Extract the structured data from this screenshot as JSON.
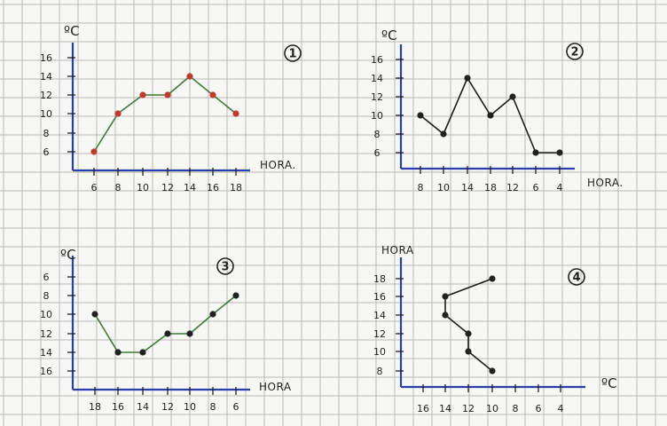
{
  "colors": {
    "paper": "#f7f7f3",
    "grid": "#b8b8b4",
    "axis": "#2a3fa8",
    "ink": "#222222",
    "line_green": "#3f7a3c",
    "line_black": "#1c1c1c",
    "point_red": "#c03a30",
    "point_dark": "#222222"
  },
  "chart_data": [
    {
      "type": "line",
      "panel_number": "1",
      "xlabel": "HORA.",
      "ylabel": "ºC",
      "x_tick_labels": [
        "6",
        "8",
        "10",
        "12",
        "14",
        "16",
        "18"
      ],
      "y_tick_labels": [
        "6",
        "8",
        "10",
        "12",
        "14",
        "16"
      ],
      "x_reversed": false,
      "y_reversed": false,
      "xlim": [
        6,
        18
      ],
      "ylim": [
        6,
        16
      ],
      "series": [
        {
          "x": [
            6,
            8,
            10,
            12,
            14,
            16,
            18
          ],
          "y": [
            6,
            10,
            12,
            12,
            14,
            12,
            10
          ],
          "line_color": "#3f7a3c",
          "point_color": "#c03a30"
        }
      ]
    },
    {
      "type": "line",
      "panel_number": "2",
      "xlabel": "HORA.",
      "ylabel": "ºC",
      "x_tick_labels": [
        "8",
        "10",
        "14",
        "18",
        "12",
        "6",
        "4"
      ],
      "y_tick_labels": [
        "6",
        "8",
        "10",
        "12",
        "14",
        "16"
      ],
      "x_categorical": true,
      "y_reversed": false,
      "ylim": [
        6,
        16
      ],
      "series": [
        {
          "x": [
            "8",
            "10",
            "14",
            "18",
            "12",
            "6",
            "4"
          ],
          "y": [
            10,
            8,
            14,
            10,
            12,
            6,
            6
          ],
          "line_color": "#1c1c1c",
          "point_color": "#222222"
        }
      ]
    },
    {
      "type": "line",
      "panel_number": "3",
      "xlabel": "HORA",
      "ylabel": "ºC",
      "x_tick_labels": [
        "18",
        "16",
        "14",
        "12",
        "10",
        "8",
        "6"
      ],
      "y_tick_labels": [
        "6",
        "8",
        "10",
        "12",
        "14",
        "16"
      ],
      "x_reversed": true,
      "y_reversed": true,
      "xlim": [
        18,
        6
      ],
      "ylim": [
        6,
        16
      ],
      "series": [
        {
          "x": [
            18,
            16,
            14,
            12,
            10,
            8,
            6
          ],
          "y": [
            10,
            14,
            14,
            12,
            12,
            10,
            8
          ],
          "line_color": "#3f7a3c",
          "point_color": "#222222"
        }
      ]
    },
    {
      "type": "line",
      "panel_number": "4",
      "xlabel": "ºC",
      "ylabel": "HORA",
      "x_tick_labels": [
        "16",
        "14",
        "12",
        "10",
        "8",
        "6",
        "4"
      ],
      "y_tick_labels": [
        "8",
        "10",
        "12",
        "14",
        "16",
        "18"
      ],
      "x_reversed": true,
      "y_reversed": false,
      "xlim": [
        16,
        4
      ],
      "ylim": [
        8,
        18
      ],
      "series": [
        {
          "x": [
            10,
            14,
            14,
            12,
            12,
            10
          ],
          "y": [
            18,
            16,
            14,
            12,
            10,
            8
          ],
          "line_color": "#1c1c1c",
          "point_color": "#222222"
        }
      ]
    }
  ]
}
